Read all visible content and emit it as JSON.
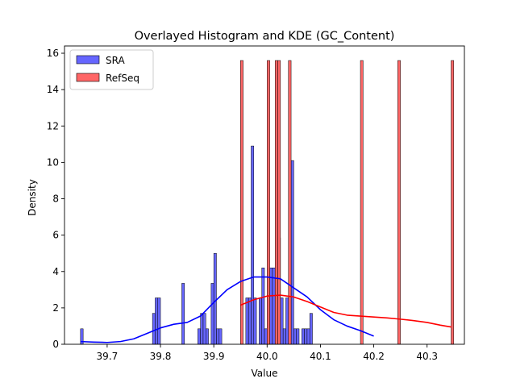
{
  "chart_data": {
    "type": "bar",
    "title": "Overlayed Histogram and KDE (GC_Content)",
    "xlabel": "Value",
    "ylabel": "Density",
    "xlim": [
      39.62,
      40.37
    ],
    "ylim": [
      0,
      16.4
    ],
    "xticks": [
      39.7,
      39.8,
      39.9,
      40.0,
      40.1,
      40.2,
      40.3
    ],
    "xtick_labels": [
      "39.7",
      "39.8",
      "39.9",
      "40.0",
      "40.1",
      "40.2",
      "40.3"
    ],
    "yticks": [
      0,
      2,
      4,
      6,
      8,
      10,
      12,
      14,
      16
    ],
    "ytick_labels": [
      "0",
      "2",
      "4",
      "6",
      "8",
      "10",
      "12",
      "14",
      "16"
    ],
    "legend_position": "top-left",
    "grid": false,
    "bin_width": 0.005,
    "series": [
      {
        "name": "SRA",
        "color": "#0000ff",
        "histogram": [
          {
            "x": 39.65,
            "height": 0.85
          },
          {
            "x": 39.785,
            "height": 1.7
          },
          {
            "x": 39.79,
            "height": 2.55
          },
          {
            "x": 39.795,
            "height": 2.55
          },
          {
            "x": 39.84,
            "height": 3.35
          },
          {
            "x": 39.87,
            "height": 0.85
          },
          {
            "x": 39.875,
            "height": 1.7
          },
          {
            "x": 39.88,
            "height": 1.7
          },
          {
            "x": 39.885,
            "height": 0.85
          },
          {
            "x": 39.895,
            "height": 3.35
          },
          {
            "x": 39.9,
            "height": 5.0
          },
          {
            "x": 39.905,
            "height": 0.85
          },
          {
            "x": 39.91,
            "height": 0.85
          },
          {
            "x": 39.96,
            "height": 2.55
          },
          {
            "x": 39.965,
            "height": 2.55
          },
          {
            "x": 39.97,
            "height": 10.9
          },
          {
            "x": 39.975,
            "height": 2.55
          },
          {
            "x": 39.985,
            "height": 2.55
          },
          {
            "x": 39.99,
            "height": 4.2
          },
          {
            "x": 39.995,
            "height": 0.85
          },
          {
            "x": 40.0,
            "height": 4.2
          },
          {
            "x": 40.005,
            "height": 4.2
          },
          {
            "x": 40.01,
            "height": 4.2
          },
          {
            "x": 40.015,
            "height": 4.2
          },
          {
            "x": 40.02,
            "height": 5.85
          },
          {
            "x": 40.025,
            "height": 2.55
          },
          {
            "x": 40.03,
            "height": 0.85
          },
          {
            "x": 40.035,
            "height": 2.55
          },
          {
            "x": 40.04,
            "height": 1.7
          },
          {
            "x": 40.045,
            "height": 10.1
          },
          {
            "x": 40.05,
            "height": 0.85
          },
          {
            "x": 40.055,
            "height": 0.85
          },
          {
            "x": 40.065,
            "height": 0.85
          },
          {
            "x": 40.07,
            "height": 0.85
          },
          {
            "x": 40.075,
            "height": 0.85
          },
          {
            "x": 40.08,
            "height": 1.7
          }
        ],
        "kde": {
          "x": [
            39.65,
            39.675,
            39.7,
            39.725,
            39.75,
            39.775,
            39.8,
            39.825,
            39.85,
            39.875,
            39.9,
            39.925,
            39.95,
            39.975,
            40.0,
            40.025,
            40.05,
            40.075,
            40.1,
            40.125,
            40.15,
            40.175,
            40.2
          ],
          "y": [
            0.15,
            0.12,
            0.1,
            0.15,
            0.3,
            0.6,
            0.9,
            1.1,
            1.2,
            1.55,
            2.3,
            3.0,
            3.45,
            3.7,
            3.7,
            3.6,
            3.1,
            2.6,
            1.9,
            1.35,
            1.0,
            0.75,
            0.45
          ]
        }
      },
      {
        "name": "RefSeq",
        "color": "#ff0000",
        "histogram": [
          {
            "x": 39.95,
            "height": 15.6
          },
          {
            "x": 40.0,
            "height": 15.6
          },
          {
            "x": 40.015,
            "height": 15.6
          },
          {
            "x": 40.02,
            "height": 15.6
          },
          {
            "x": 40.04,
            "height": 15.6
          },
          {
            "x": 40.175,
            "height": 15.6
          },
          {
            "x": 40.245,
            "height": 15.6
          },
          {
            "x": 40.345,
            "height": 15.6
          }
        ],
        "kde": {
          "x": [
            39.95,
            39.975,
            40.0,
            40.025,
            40.05,
            40.075,
            40.1,
            40.125,
            40.15,
            40.175,
            40.2,
            40.225,
            40.25,
            40.275,
            40.3,
            40.325,
            40.345
          ],
          "y": [
            2.15,
            2.45,
            2.65,
            2.7,
            2.6,
            2.35,
            2.05,
            1.75,
            1.6,
            1.55,
            1.5,
            1.45,
            1.38,
            1.3,
            1.2,
            1.05,
            0.95
          ]
        }
      }
    ]
  }
}
